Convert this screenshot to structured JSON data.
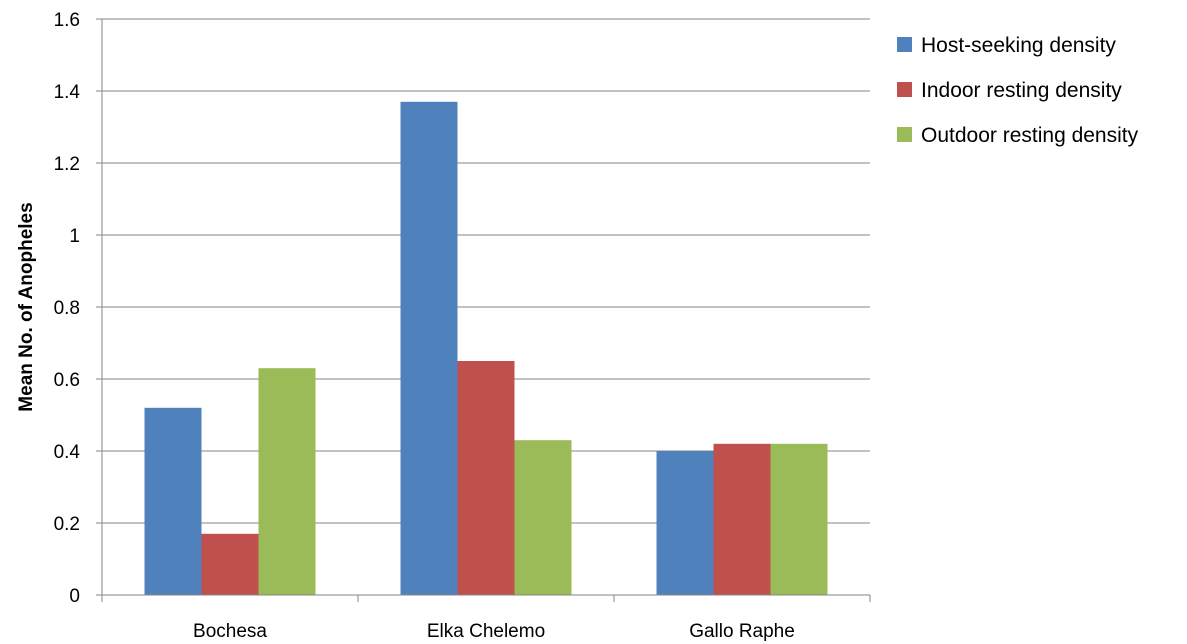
{
  "chart_data": {
    "type": "bar",
    "title": "",
    "xlabel": "",
    "ylabel": "Mean No. of Anopheles",
    "ylim": [
      0,
      1.6
    ],
    "yticks": [
      0,
      0.2,
      0.4,
      0.6,
      0.8,
      1,
      1.2,
      1.4,
      1.6
    ],
    "ytick_labels": [
      "0",
      "0.2",
      "0.4",
      "0.6",
      "0.8",
      "1",
      "1.2",
      "1.4",
      "1.6"
    ],
    "grid": true,
    "legend_position": "right",
    "categories": [
      "Bochesa",
      "Elka Chelemo",
      "Gallo Raphe"
    ],
    "series": [
      {
        "name": "Host-seeking density",
        "color": "#4F81BD",
        "values": [
          0.52,
          1.37,
          0.4
        ]
      },
      {
        "name": "Indoor resting density",
        "color": "#C0504D",
        "values": [
          0.17,
          0.65,
          0.42
        ]
      },
      {
        "name": "Outdoor resting density",
        "color": "#9BBB59",
        "values": [
          0.63,
          0.43,
          0.42
        ]
      }
    ]
  }
}
